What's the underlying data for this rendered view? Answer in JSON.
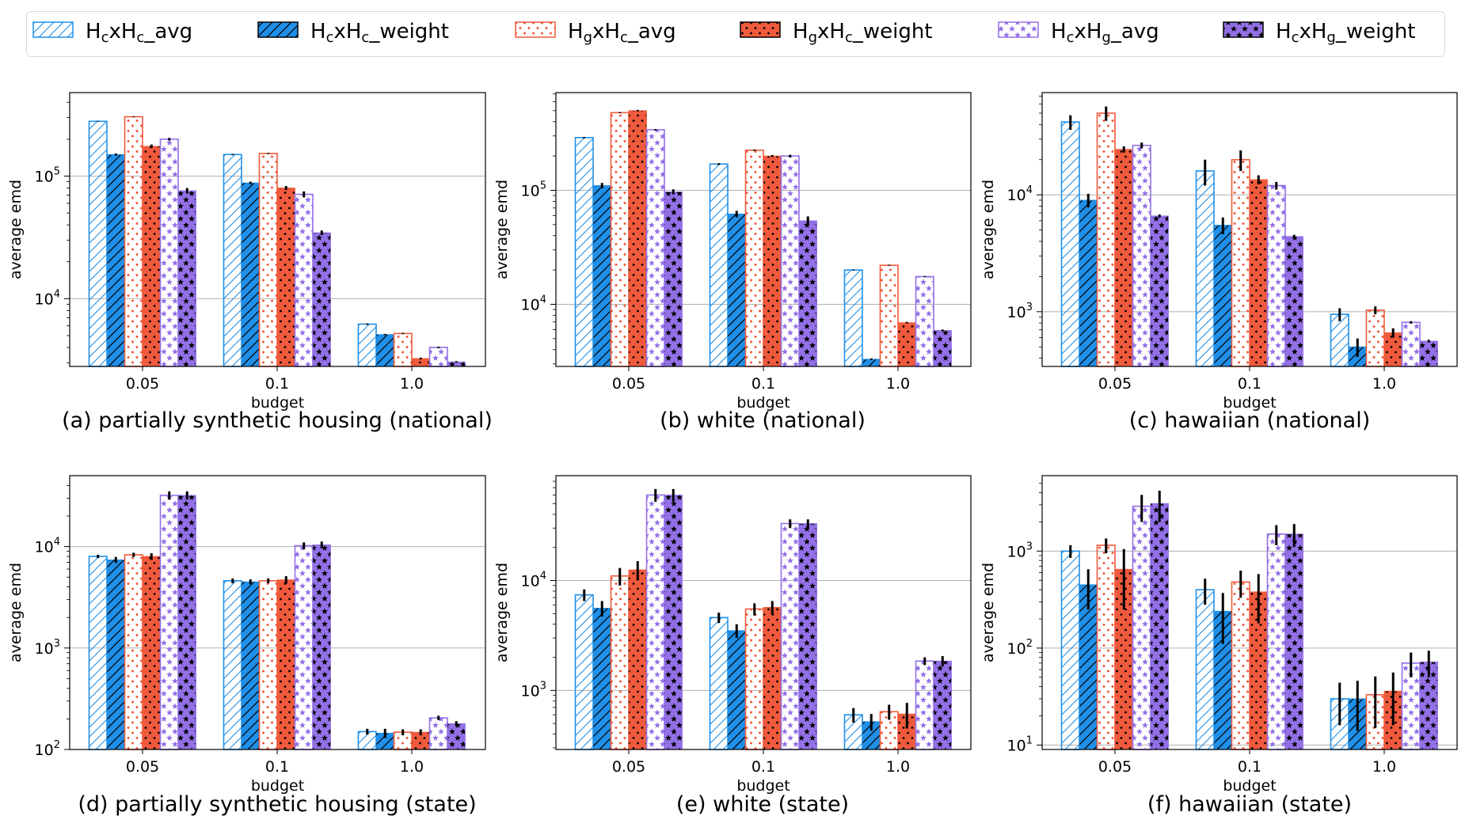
{
  "legend": [
    {
      "key": "hchc_avg",
      "label": "HcxHc_avg",
      "sub": [
        "c",
        "c"
      ],
      "color": "#1f8fe8",
      "style": "hatch-hollow"
    },
    {
      "key": "hchc_weight",
      "label": "HcxHc_weight",
      "sub": [
        "c",
        "c"
      ],
      "color": "#1f8fe8",
      "style": "hatch-filled"
    },
    {
      "key": "hghc_avg",
      "label": "HgxHc_avg",
      "sub": [
        "g",
        "c"
      ],
      "color": "#f05a3c",
      "style": "dots-hollow"
    },
    {
      "key": "hghc_weight",
      "label": "HgxHc_weight",
      "sub": [
        "g",
        "c"
      ],
      "color": "#f05a3c",
      "style": "dots-filled"
    },
    {
      "key": "hchg_avg",
      "label": "HcxHg_avg",
      "sub": [
        "c",
        "g"
      ],
      "color": "#9370e6",
      "style": "stars-hollow"
    },
    {
      "key": "hchg_weight",
      "label": "HcxHg_weight",
      "sub": [
        "c",
        "g"
      ],
      "color": "#9370e6",
      "style": "stars-filled"
    }
  ],
  "chart_data": [
    {
      "type": "bar",
      "caption": "(a) partially synthetic housing (national)",
      "xlabel": "budget",
      "ylabel": "average emd",
      "yscale": "log",
      "ylim": [
        2800,
        480000
      ],
      "yticks": [
        {
          "v": 10000,
          "t": "10",
          "e": "4"
        },
        {
          "v": 100000,
          "t": "10",
          "e": "5"
        }
      ],
      "categories": [
        "0.05",
        "0.1",
        "1.0"
      ],
      "series": [
        {
          "key": "hchc_avg",
          "values": [
            280000,
            150000,
            6200
          ],
          "err": [
            2000,
            1500,
            80
          ]
        },
        {
          "key": "hchc_weight",
          "values": [
            150000,
            88000,
            5100
          ],
          "err": [
            3000,
            2000,
            60
          ]
        },
        {
          "key": "hghc_avg",
          "values": [
            305000,
            153000,
            5200
          ],
          "err": [
            2000,
            1500,
            60
          ]
        },
        {
          "key": "hghc_weight",
          "values": [
            175000,
            80000,
            3250
          ],
          "err": [
            6000,
            3000,
            50
          ]
        },
        {
          "key": "hchg_avg",
          "values": [
            200000,
            71000,
            4000
          ],
          "err": [
            5000,
            4000,
            60
          ]
        },
        {
          "key": "hchg_weight",
          "values": [
            76000,
            34500,
            3050
          ],
          "err": [
            4000,
            1500,
            40
          ]
        }
      ]
    },
    {
      "type": "bar",
      "caption": "(b) white (national)",
      "xlabel": "budget",
      "ylabel": "average emd",
      "yscale": "log",
      "ylim": [
        2850,
        720000
      ],
      "yticks": [
        {
          "v": 10000,
          "t": "10",
          "e": "4"
        },
        {
          "v": 100000,
          "t": "10",
          "e": "5"
        }
      ],
      "categories": [
        "0.05",
        "0.1",
        "1.0"
      ],
      "series": [
        {
          "key": "hchc_avg",
          "values": [
            290000,
            170000,
            20000
          ],
          "err": [
            4000,
            3000,
            200
          ]
        },
        {
          "key": "hchc_weight",
          "values": [
            110000,
            62000,
            3300
          ],
          "err": [
            6000,
            4000,
            50
          ]
        },
        {
          "key": "hghc_avg",
          "values": [
            480000,
            225000,
            22000
          ],
          "err": [
            5000,
            3000,
            200
          ]
        },
        {
          "key": "hghc_weight",
          "values": [
            500000,
            200000,
            6900
          ],
          "err": [
            8000,
            4000,
            100
          ]
        },
        {
          "key": "hchg_avg",
          "values": [
            340000,
            200000,
            17500
          ],
          "err": [
            5000,
            5000,
            200
          ]
        },
        {
          "key": "hchg_weight",
          "values": [
            97000,
            54000,
            5900
          ],
          "err": [
            5000,
            5000,
            100
          ]
        }
      ]
    },
    {
      "type": "bar",
      "caption": "(c) hawaiian (national)",
      "xlabel": "budget",
      "ylabel": "average emd",
      "yscale": "log",
      "ylim": [
        340,
        75000
      ],
      "yticks": [
        {
          "v": 1000,
          "t": "10",
          "e": "3"
        },
        {
          "v": 10000,
          "t": "10",
          "e": "4"
        }
      ],
      "categories": [
        "0.05",
        "0.1",
        "1.0"
      ],
      "series": [
        {
          "key": "hchc_avg",
          "values": [
            42000,
            16000,
            950
          ],
          "err": [
            6000,
            4000,
            120
          ]
        },
        {
          "key": "hchc_weight",
          "values": [
            9000,
            5500,
            500
          ],
          "err": [
            1200,
            900,
            90
          ]
        },
        {
          "key": "hghc_avg",
          "values": [
            50000,
            20000,
            1030
          ],
          "err": [
            7000,
            4000,
            80
          ]
        },
        {
          "key": "hghc_weight",
          "values": [
            24500,
            13500,
            660
          ],
          "err": [
            1500,
            1200,
            60
          ]
        },
        {
          "key": "hchg_avg",
          "values": [
            26500,
            12000,
            810
          ],
          "err": [
            1500,
            900,
            20
          ]
        },
        {
          "key": "hchg_weight",
          "values": [
            6600,
            4400,
            560
          ],
          "err": [
            200,
            150,
            15
          ]
        }
      ]
    },
    {
      "type": "bar",
      "caption": "(d) partially synthetic housing (state)",
      "xlabel": "budget",
      "ylabel": "average emd",
      "yscale": "log",
      "ylim": [
        100,
        50000
      ],
      "yticks": [
        {
          "v": 100,
          "t": "10",
          "e": "2"
        },
        {
          "v": 1000,
          "t": "10",
          "e": "3"
        },
        {
          "v": 10000,
          "t": "10",
          "e": "4"
        }
      ],
      "categories": [
        "0.05",
        "0.1",
        "1.0"
      ],
      "series": [
        {
          "key": "hchc_avg",
          "values": [
            8000,
            4600,
            150
          ],
          "err": [
            300,
            250,
            10
          ]
        },
        {
          "key": "hchc_weight",
          "values": [
            7400,
            4500,
            145
          ],
          "err": [
            500,
            250,
            15
          ]
        },
        {
          "key": "hghc_avg",
          "values": [
            8300,
            4600,
            148
          ],
          "err": [
            400,
            250,
            10
          ]
        },
        {
          "key": "hghc_weight",
          "values": [
            8000,
            4700,
            148
          ],
          "err": [
            600,
            400,
            10
          ]
        },
        {
          "key": "hchg_avg",
          "values": [
            32000,
            10200,
            205
          ],
          "err": [
            3000,
            800,
            10
          ]
        },
        {
          "key": "hchg_weight",
          "values": [
            32000,
            10400,
            180
          ],
          "err": [
            3000,
            800,
            10
          ]
        }
      ]
    },
    {
      "type": "bar",
      "caption": "(e) white (state)",
      "xlabel": "budget",
      "ylabel": "average emd",
      "yscale": "log",
      "ylim": [
        290,
        90000
      ],
      "yticks": [
        {
          "v": 1000,
          "t": "10",
          "e": "3"
        },
        {
          "v": 10000,
          "t": "10",
          "e": "4"
        }
      ],
      "categories": [
        "0.05",
        "0.1",
        "1.0"
      ],
      "series": [
        {
          "key": "hchc_avg",
          "values": [
            7400,
            4600,
            600
          ],
          "err": [
            900,
            500,
            90
          ]
        },
        {
          "key": "hchc_weight",
          "values": [
            5600,
            3500,
            520
          ],
          "err": [
            900,
            500,
            90
          ]
        },
        {
          "key": "hghc_avg",
          "values": [
            11000,
            5500,
            640
          ],
          "err": [
            2000,
            700,
            100
          ]
        },
        {
          "key": "hghc_weight",
          "values": [
            12500,
            5700,
            610
          ],
          "err": [
            2500,
            800,
            160
          ]
        },
        {
          "key": "hchg_avg",
          "values": [
            60000,
            33000,
            1850
          ],
          "err": [
            8000,
            3000,
            150
          ]
        },
        {
          "key": "hchg_weight",
          "values": [
            60000,
            33000,
            1850
          ],
          "err": [
            8000,
            3000,
            200
          ]
        }
      ]
    },
    {
      "type": "bar",
      "caption": "(f) hawaiian (state)",
      "xlabel": "budget",
      "ylabel": "average emd",
      "yscale": "log",
      "ylim": [
        9,
        6000
      ],
      "yticks": [
        {
          "v": 10,
          "t": "10",
          "e": "1"
        },
        {
          "v": 100,
          "t": "10",
          "e": "2"
        },
        {
          "v": 1000,
          "t": "10",
          "e": "3"
        }
      ],
      "categories": [
        "0.05",
        "0.1",
        "1.0"
      ],
      "series": [
        {
          "key": "hchc_avg",
          "values": [
            1000,
            400,
            30
          ],
          "err": [
            150,
            120,
            14
          ]
        },
        {
          "key": "hchc_weight",
          "values": [
            450,
            240,
            30
          ],
          "err": [
            200,
            130,
            16
          ]
        },
        {
          "key": "hghc_avg",
          "values": [
            1150,
            480,
            33
          ],
          "err": [
            200,
            150,
            18
          ]
        },
        {
          "key": "hghc_weight",
          "values": [
            650,
            380,
            36
          ],
          "err": [
            400,
            200,
            20
          ]
        },
        {
          "key": "hchg_avg",
          "values": [
            2900,
            1500,
            70
          ],
          "err": [
            900,
            350,
            20
          ]
        },
        {
          "key": "hchg_weight",
          "values": [
            3100,
            1500,
            72
          ],
          "err": [
            1100,
            400,
            22
          ]
        }
      ]
    }
  ]
}
